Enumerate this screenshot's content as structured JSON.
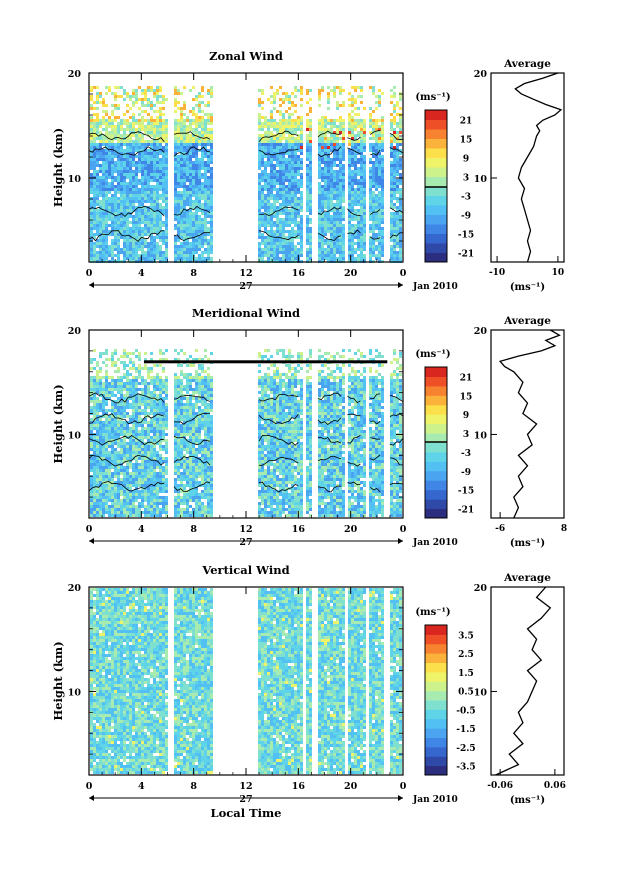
{
  "common": {
    "x_ticks": [
      "0",
      "4",
      "8",
      "12",
      "16",
      "20",
      "0"
    ],
    "day_label": "27",
    "date_label": "Jan 2010",
    "y_ticks": [
      "20",
      "10"
    ],
    "ylabel": "Height (km)",
    "unit": "(ms⁻¹)",
    "avg_title": "Average",
    "xlabel_bottom": "Local Time"
  },
  "colors": {
    "scale": [
      "#2b2d7e",
      "#2e49a8",
      "#3567cf",
      "#3f86e6",
      "#4aa4f0",
      "#52c0f2",
      "#5fd4e8",
      "#7fe0cf",
      "#a8ebb0",
      "#cdf28c",
      "#eef36a",
      "#fbe04b",
      "#fbb23b",
      "#f7822f",
      "#ee4f26",
      "#d9261f"
    ]
  },
  "chart_data": [
    {
      "type": "heatmap",
      "title": "Zonal Wind",
      "ylabel": "Height (km)",
      "ylim": [
        2,
        20
      ],
      "xlim": [
        0,
        24
      ],
      "colorbar": {
        "unit": "(ms⁻¹)",
        "ticks": [
          "21",
          "15",
          "9",
          "3",
          "-3",
          "-9",
          "-15",
          "-21"
        ],
        "range": [
          -24,
          24
        ]
      },
      "gaps": [
        [
          6.0,
          6.3
        ],
        [
          9.3,
          12.8
        ],
        [
          16.2,
          16.5
        ],
        [
          17.0,
          17.4
        ],
        [
          19.4,
          19.7
        ],
        [
          21.0,
          21.3
        ],
        [
          22.5,
          22.8
        ]
      ],
      "average": {
        "title": "Average",
        "xlim": [
          -12,
          12
        ],
        "xticks": [
          "-10",
          "10"
        ],
        "unit": "(ms⁻¹)",
        "height": [
          2,
          3,
          4,
          5,
          6,
          7,
          8,
          9,
          10,
          11,
          12,
          13,
          14,
          14.5,
          15,
          15.5,
          16,
          16.5,
          17,
          17.5,
          18,
          18.5,
          19,
          19.5,
          20
        ],
        "value": [
          0,
          1,
          0,
          1,
          0,
          -1,
          -2,
          -1,
          -3,
          -2,
          0,
          2,
          3,
          4,
          3,
          5,
          9,
          11,
          6,
          2,
          -2,
          -4,
          -1,
          5,
          10
        ]
      }
    },
    {
      "type": "heatmap",
      "title": "Meridional Wind",
      "ylabel": "Height (km)",
      "ylim": [
        2,
        20
      ],
      "xlim": [
        0,
        24
      ],
      "colorbar": {
        "unit": "(ms⁻¹)",
        "ticks": [
          "21",
          "15",
          "9",
          "3",
          "-3",
          "-9",
          "-15",
          "-21"
        ],
        "range": [
          -24,
          24
        ]
      },
      "gaps": [
        [
          6.0,
          6.3
        ],
        [
          9.3,
          12.8
        ],
        [
          16.2,
          16.5
        ],
        [
          17.0,
          17.4
        ],
        [
          19.4,
          19.7
        ],
        [
          21.0,
          21.3
        ],
        [
          22.5,
          22.8
        ]
      ],
      "average": {
        "title": "Average",
        "xlim": [
          -8,
          8
        ],
        "xticks": [
          "-6",
          "8"
        ],
        "unit": "(ms⁻¹)",
        "height": [
          2,
          3,
          4,
          5,
          6,
          7,
          8,
          9,
          10,
          11,
          12,
          13,
          14,
          15,
          16,
          16.5,
          17,
          17.5,
          18,
          18.5,
          19,
          19.5,
          20
        ],
        "value": [
          -3,
          -2,
          -3,
          -1,
          -2,
          0,
          -2,
          1,
          0,
          2,
          -1,
          0,
          -2,
          -1,
          -3,
          -5,
          -6,
          -2,
          3,
          6,
          4,
          7,
          5
        ]
      }
    },
    {
      "type": "heatmap",
      "title": "Vertical Wind",
      "ylabel": "Height (km)",
      "xlabel": "Local Time",
      "ylim": [
        2,
        20
      ],
      "xlim": [
        0,
        24
      ],
      "colorbar": {
        "unit": "(ms⁻¹)",
        "ticks": [
          "3.5",
          "2.5",
          "1.5",
          "0.5",
          "-0.5",
          "-1.5",
          "-2.5",
          "-3.5"
        ],
        "range": [
          -4,
          4
        ]
      },
      "gaps": [
        [
          6.0,
          6.3
        ],
        [
          9.3,
          12.8
        ],
        [
          16.2,
          16.5
        ],
        [
          17.0,
          17.4
        ],
        [
          19.4,
          19.7
        ],
        [
          21.0,
          21.3
        ],
        [
          22.5,
          22.8
        ]
      ],
      "average": {
        "title": "Average",
        "xlim": [
          -0.08,
          0.08
        ],
        "xticks": [
          "-0.06",
          "0.06"
        ],
        "unit": "(ms⁻¹)",
        "height": [
          2,
          3,
          4,
          5,
          6,
          7,
          8,
          9,
          10,
          11,
          12,
          13,
          14,
          15,
          16,
          17,
          18,
          19,
          20
        ],
        "value": [
          -0.07,
          -0.02,
          -0.04,
          -0.01,
          -0.03,
          -0.01,
          -0.02,
          0.0,
          0.01,
          0.02,
          0.0,
          0.03,
          0.01,
          0.02,
          0.0,
          0.03,
          0.05,
          0.02,
          0.04
        ]
      }
    }
  ]
}
